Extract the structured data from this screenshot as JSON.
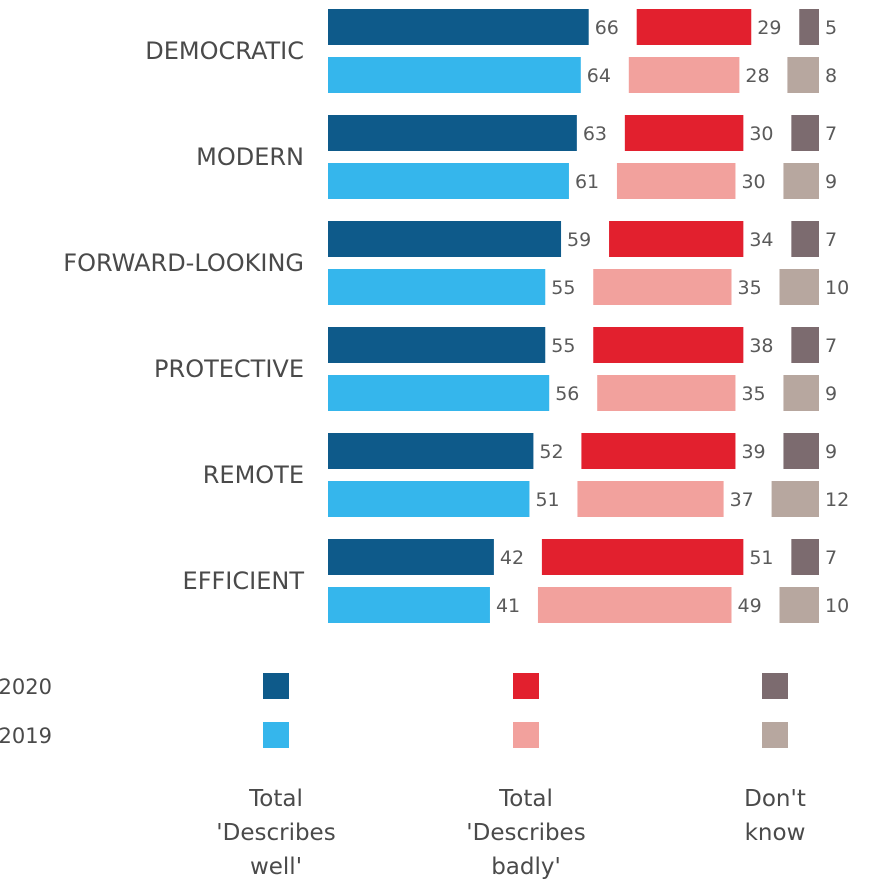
{
  "chart_data": {
    "type": "bar",
    "categories": [
      "DEMOCRATIC",
      "MODERN",
      "FORWARD-LOOKING",
      "PROTECTIVE",
      "REMOTE",
      "EFFICIENT"
    ],
    "years": [
      "2020",
      "2019"
    ],
    "groups": [
      {
        "name": "Total 'Describes well'",
        "label_lines": [
          "Total",
          "'Describes",
          "well'"
        ],
        "colors": [
          "#0e5a8a",
          "#35b6ec"
        ],
        "values": {
          "2020": [
            66,
            63,
            59,
            55,
            52,
            42
          ],
          "2019": [
            64,
            61,
            55,
            56,
            51,
            41
          ]
        }
      },
      {
        "name": "Total 'Describes badly'",
        "label_lines": [
          "Total",
          "'Describes",
          "badly'"
        ],
        "colors": [
          "#e2202e",
          "#f2a19d"
        ],
        "values": {
          "2020": [
            29,
            30,
            34,
            38,
            39,
            51
          ],
          "2019": [
            28,
            30,
            35,
            35,
            37,
            49
          ]
        }
      },
      {
        "name": "Don't know",
        "label_lines": [
          "Don't",
          "know"
        ],
        "colors": [
          "#7c6b6f",
          "#b7a79f"
        ],
        "values": {
          "2020": [
            5,
            7,
            7,
            7,
            9,
            7
          ],
          "2019": [
            8,
            9,
            10,
            9,
            12,
            10
          ]
        }
      }
    ],
    "stacked": true,
    "xlim": [
      0,
      100
    ],
    "grid": false,
    "legend": "bottom"
  }
}
